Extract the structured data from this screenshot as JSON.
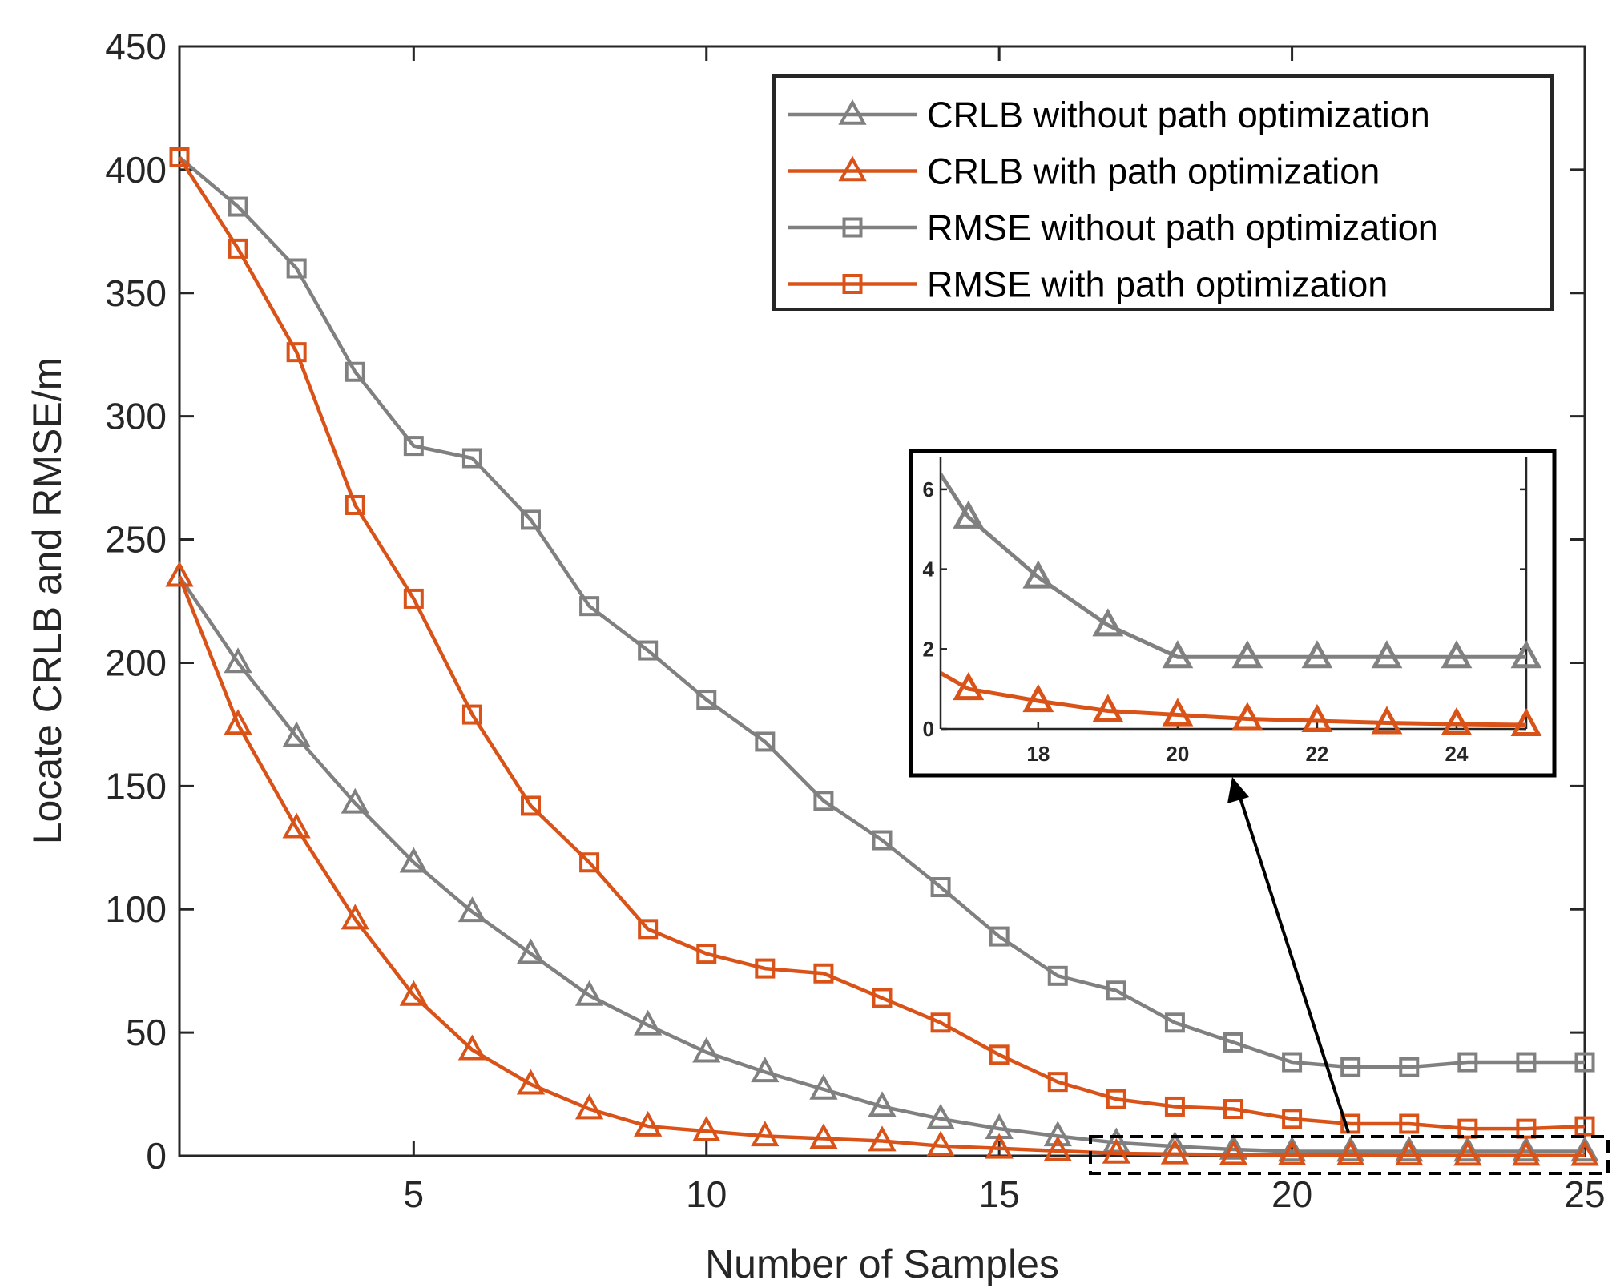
{
  "chart_data": {
    "type": "line",
    "title": "",
    "xlabel": "Number of Samples",
    "ylabel": "Locate CRLB and RMSE/m",
    "xlim": [
      1,
      25
    ],
    "ylim": [
      0,
      450
    ],
    "xticks": [
      5,
      10,
      15,
      20,
      25
    ],
    "yticks": [
      0,
      50,
      100,
      150,
      200,
      250,
      300,
      350,
      400,
      450
    ],
    "grid": false,
    "legend_position": "top-right",
    "x": [
      1,
      2,
      3,
      4,
      5,
      6,
      7,
      8,
      9,
      10,
      11,
      12,
      13,
      14,
      15,
      16,
      17,
      18,
      19,
      20,
      21,
      22,
      23,
      24,
      25
    ],
    "series": [
      {
        "name": "CRLB without path optimization",
        "color": "#808080",
        "marker": "triangle",
        "values": [
          235,
          200,
          170,
          143,
          119,
          99,
          82,
          65,
          53,
          42,
          34,
          27,
          20,
          15,
          11,
          8,
          5.3,
          3.8,
          2.6,
          1.8,
          1.8,
          1.8,
          1.8,
          1.8,
          1.8
        ]
      },
      {
        "name": "CRLB with path optimization",
        "color": "#D95319",
        "marker": "triangle",
        "values": [
          235,
          175,
          133,
          96,
          65,
          43,
          29,
          19,
          12,
          10,
          8,
          7,
          6,
          4,
          3,
          2,
          1.0,
          0.7,
          0.45,
          0.35,
          0.25,
          0.2,
          0.15,
          0.12,
          0.1
        ]
      },
      {
        "name": "RMSE without path optimization",
        "color": "#808080",
        "marker": "square",
        "values": [
          405,
          385,
          360,
          318,
          288,
          283,
          258,
          223,
          205,
          185,
          168,
          144,
          128,
          109,
          89,
          73,
          67,
          54,
          46,
          38,
          36,
          36,
          38,
          38,
          38
        ]
      },
      {
        "name": "RMSE with path optimization",
        "color": "#D95319",
        "marker": "square",
        "values": [
          405,
          368,
          326,
          264,
          226,
          179,
          142,
          119,
          92,
          82,
          76,
          74,
          64,
          54,
          41,
          30,
          23,
          20,
          19,
          15,
          13,
          13,
          11,
          11,
          12
        ]
      }
    ],
    "inset": {
      "xlim": [
        16.6,
        25
      ],
      "ylim": [
        0,
        6.6
      ],
      "xticks": [
        18,
        20,
        22,
        24
      ],
      "yticks": [
        0,
        2,
        4,
        6
      ],
      "series_shown": [
        0,
        1
      ],
      "zoom_region_x": [
        16.6,
        25.4
      ],
      "zoom_region_y": [
        -6,
        8
      ]
    }
  }
}
